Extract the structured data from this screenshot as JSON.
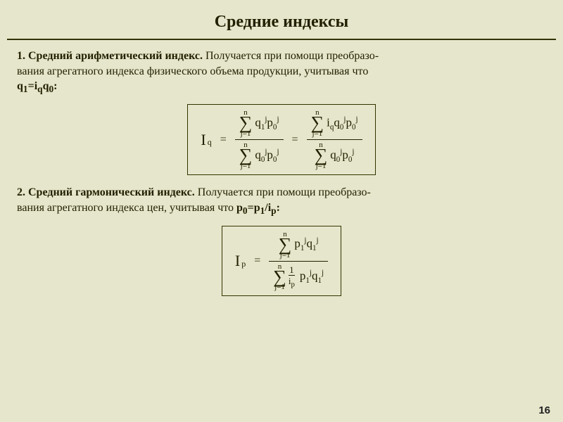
{
  "title": "Средние индексы",
  "section1": {
    "lead": "1. Средний арифметический индекс.",
    "body_a": " Получается при помощи преобразо-",
    "body_b": "вания агрегатного индекса физического объема продукции, учитывая что",
    "relation_html": "q<sub>1</sub>=i<sub>q</sub>q<sub>0</sub>:"
  },
  "formula1": {
    "lhs_var": "I",
    "lhs_sub": "q",
    "sum_upper": "n",
    "sum_lower": "j=1",
    "numA": "q<span class='subm'>1</span><span class='sup'>j</span>p<span class='subm'>0</span><span class='sup'>j</span>",
    "denA": "q<span class='subm'>0</span><span class='sup'>j</span>p<span class='subm'>0</span><span class='sup'>j</span>",
    "numB": "i<span class='subm'>q</span>q<span class='subm'>0</span><span class='sup'>j</span>p<span class='subm'>0</span><span class='sup'>j</span>",
    "denB": "q<span class='subm'>0</span><span class='sup'>j</span>p<span class='subm'>0</span><span class='sup'>j</span>"
  },
  "section2": {
    "lead": "2. Средний гармонический индекс.",
    "body_a": " Получается при помощи преобразо-",
    "body_b": "вания агрегатного индекса цен, учитывая что ",
    "relation_html": "p<sub>0</sub>=p<sub>1</sub>/i<sub>p</sub>:"
  },
  "formula2": {
    "lhs_var": "I",
    "lhs_sub": "p",
    "sum_upper": "n",
    "sum_lower": "j=1",
    "num": "p<span class='subm'>1</span><span class='sup'>j</span>q<span class='subm'>1</span><span class='sup'>j</span>",
    "tiny_num": "1",
    "tiny_den": "i<sub>p</sub>",
    "den_tail": "p<span class='subm'>1</span><span class='sup'>j</span>q<span class='subm'>1</span><span class='sup'>j</span>"
  },
  "page_number": "16",
  "colors": {
    "background": "#e6e6cc",
    "text": "#222000",
    "rule": "#333300",
    "box_border": "#333300"
  },
  "typography": {
    "title_fontsize": 24,
    "body_fontsize": 16,
    "formula_fontsize": 17
  }
}
